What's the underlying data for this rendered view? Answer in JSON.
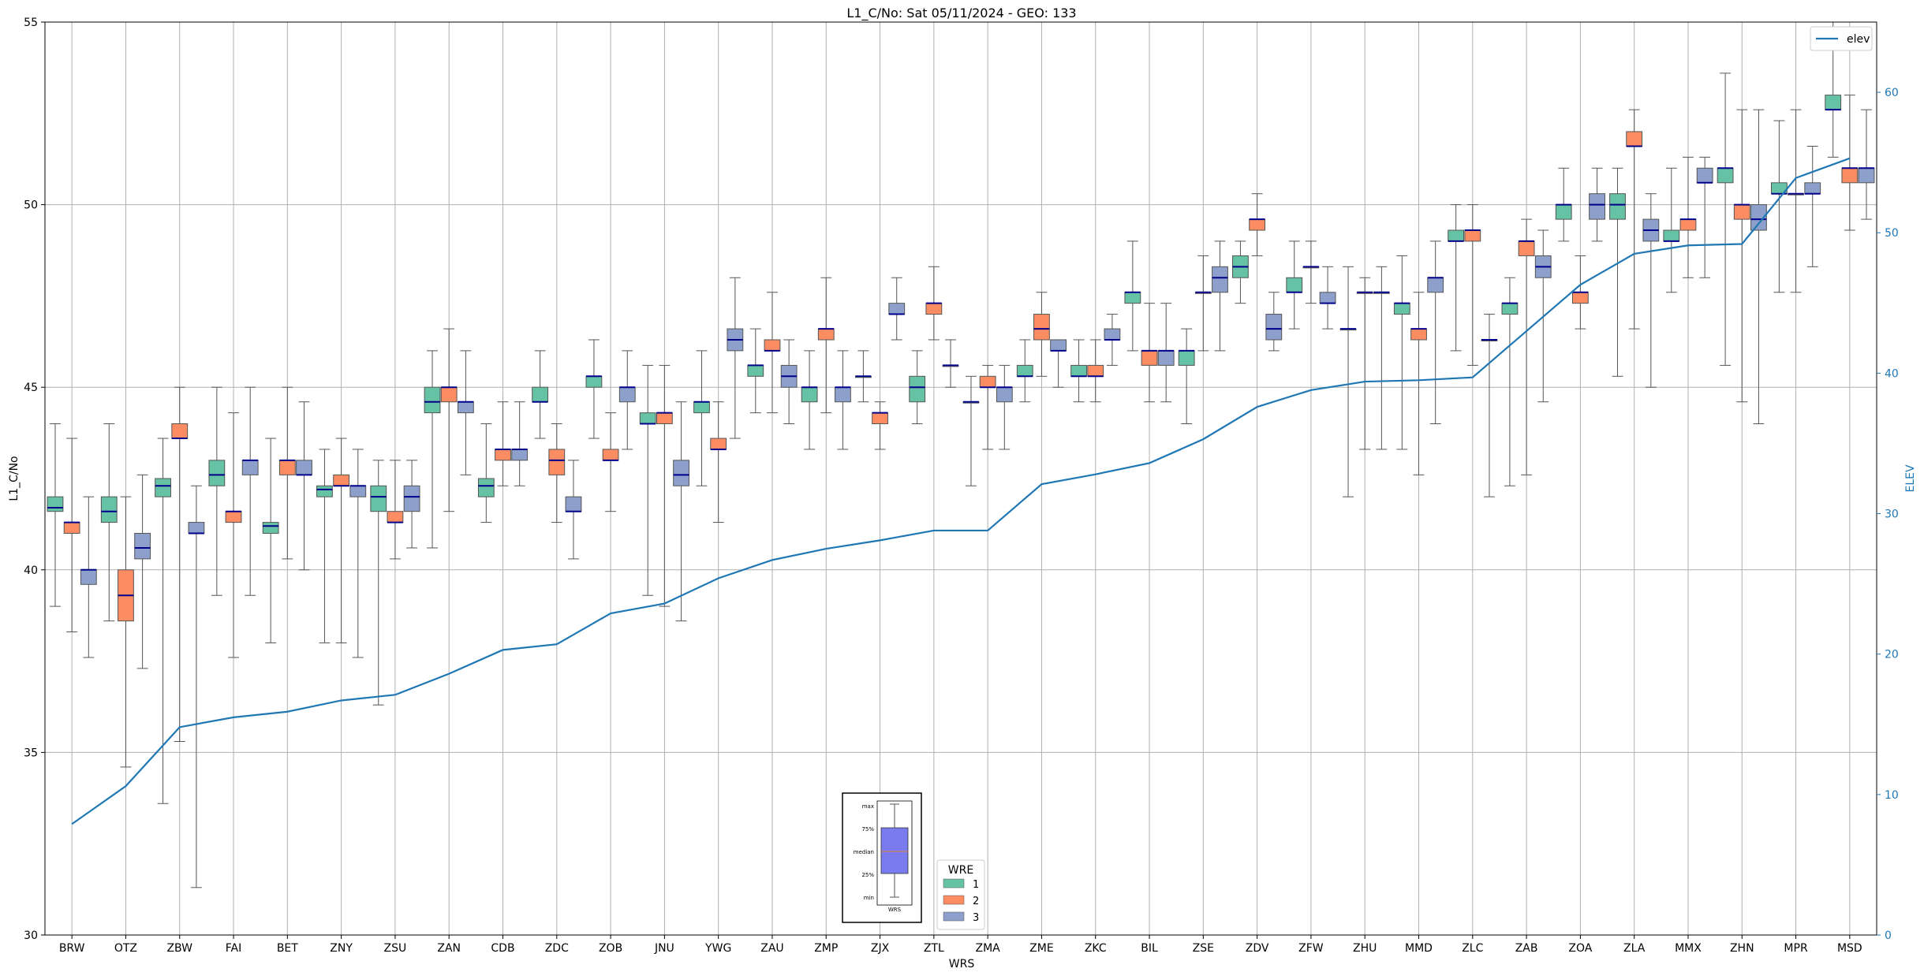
{
  "chart_data": {
    "type": "box",
    "title": "L1_C/No: Sat 05/11/2024 - GEO: 133",
    "xlabel": "WRS",
    "ylabel": "L1_C/No",
    "ylabel_right": "ELEV",
    "ylim": [
      30,
      55
    ],
    "ylim_right": [
      0,
      65
    ],
    "yticks": [
      30,
      35,
      40,
      45,
      50,
      55
    ],
    "yticks_right": [
      0,
      10,
      20,
      30,
      40,
      50,
      60
    ],
    "grid": true,
    "colors": {
      "wre1": "#66c2a5",
      "wre2": "#fc8d62",
      "wre3": "#8da0cb",
      "elev": "#1f77b4",
      "median": "#00008b",
      "whisker": "#555555"
    },
    "legend_elev": {
      "placement": "upper right",
      "label": "elev"
    },
    "legend_wre": {
      "title": "WRE",
      "placement": "lower center",
      "entries": [
        "1",
        "2",
        "3"
      ]
    },
    "key_box": {
      "labels": [
        "max",
        "75%",
        "median",
        "25%",
        "min"
      ],
      "xlabel": "WRS",
      "fill": "#7b7bf0",
      "median_color": "#e07b39"
    },
    "categories": [
      "BRW",
      "OTZ",
      "ZBW",
      "FAI",
      "BET",
      "ZNY",
      "ZSU",
      "ZAN",
      "CDB",
      "ZDC",
      "ZOB",
      "JNU",
      "YWG",
      "ZAU",
      "ZMP",
      "ZJX",
      "ZTL",
      "ZMA",
      "ZME",
      "ZKC",
      "BIL",
      "ZSE",
      "ZDV",
      "ZFW",
      "ZHU",
      "MMD",
      "ZLC",
      "ZAB",
      "ZOA",
      "ZLA",
      "MMX",
      "ZHN",
      "MPR",
      "MSD"
    ],
    "series": [
      {
        "name": "1",
        "boxes": [
          [
            39.0,
            41.6,
            41.7,
            42.0,
            44.0
          ],
          [
            38.6,
            41.3,
            41.6,
            42.0,
            44.0
          ],
          [
            33.6,
            42.0,
            42.3,
            42.5,
            43.6
          ],
          [
            39.3,
            42.3,
            42.6,
            43.0,
            45.0
          ],
          [
            38.0,
            41.0,
            41.2,
            41.3,
            43.6
          ],
          [
            38.0,
            42.0,
            42.2,
            42.3,
            43.3
          ],
          [
            36.3,
            41.6,
            42.0,
            42.3,
            43.0
          ],
          [
            40.6,
            44.3,
            44.6,
            45.0,
            46.0
          ],
          [
            41.3,
            42.0,
            42.3,
            42.5,
            44.0
          ],
          [
            43.6,
            44.6,
            44.6,
            45.0,
            46.0
          ],
          [
            43.6,
            45.0,
            45.3,
            45.3,
            46.3
          ],
          [
            39.3,
            44.0,
            44.0,
            44.3,
            45.6
          ],
          [
            42.3,
            44.3,
            44.6,
            44.6,
            46.0
          ],
          [
            44.3,
            45.3,
            45.6,
            45.6,
            46.6
          ],
          [
            43.3,
            44.6,
            45.0,
            45.0,
            46.0
          ],
          [
            44.6,
            45.3,
            45.3,
            45.3,
            46.0
          ],
          [
            44.0,
            44.6,
            45.0,
            45.3,
            46.0
          ],
          [
            42.3,
            44.6,
            44.6,
            44.6,
            45.3
          ],
          [
            44.6,
            45.3,
            45.3,
            45.6,
            46.3
          ],
          [
            44.6,
            45.3,
            45.3,
            45.6,
            46.3
          ],
          [
            46.0,
            47.3,
            47.6,
            47.6,
            49.0
          ],
          [
            44.0,
            45.6,
            46.0,
            46.0,
            46.6
          ],
          [
            47.3,
            48.0,
            48.3,
            48.6,
            49.0
          ],
          [
            46.6,
            47.6,
            47.6,
            48.0,
            49.0
          ],
          [
            42.0,
            46.6,
            46.6,
            46.6,
            48.3
          ],
          [
            43.3,
            47.0,
            47.3,
            47.3,
            48.6
          ],
          [
            46.0,
            49.0,
            49.0,
            49.3,
            50.0
          ],
          [
            42.3,
            47.0,
            47.3,
            47.3,
            48.0
          ],
          [
            49.0,
            49.6,
            50.0,
            50.0,
            51.0
          ],
          [
            45.3,
            49.6,
            50.0,
            50.3,
            51.0
          ],
          [
            47.6,
            49.0,
            49.0,
            49.3,
            51.0
          ],
          [
            45.6,
            50.6,
            51.0,
            51.0,
            53.6
          ],
          [
            47.6,
            50.3,
            50.3,
            50.6,
            52.3
          ],
          [
            51.3,
            52.6,
            52.6,
            53.0,
            55.0
          ]
        ]
      },
      {
        "name": "2",
        "boxes": [
          [
            38.3,
            41.0,
            41.3,
            41.3,
            43.6
          ],
          [
            34.6,
            38.6,
            39.3,
            40.0,
            42.0
          ],
          [
            35.3,
            43.6,
            43.6,
            44.0,
            45.0
          ],
          [
            37.6,
            41.3,
            41.6,
            41.6,
            44.3
          ],
          [
            40.3,
            42.6,
            43.0,
            43.0,
            45.0
          ],
          [
            38.0,
            42.3,
            42.3,
            42.6,
            43.6
          ],
          [
            40.3,
            41.3,
            41.3,
            41.6,
            43.0
          ],
          [
            41.6,
            44.6,
            45.0,
            45.0,
            46.6
          ],
          [
            42.3,
            43.0,
            43.3,
            43.3,
            44.6
          ],
          [
            41.3,
            42.6,
            43.0,
            43.3,
            44.0
          ],
          [
            41.6,
            43.0,
            43.0,
            43.3,
            44.3
          ],
          [
            39.0,
            44.0,
            44.3,
            44.3,
            45.6
          ],
          [
            41.3,
            43.3,
            43.3,
            43.6,
            44.6
          ],
          [
            44.3,
            46.0,
            46.0,
            46.3,
            47.6
          ],
          [
            44.3,
            46.3,
            46.6,
            46.6,
            48.0
          ],
          [
            43.3,
            44.0,
            44.3,
            44.3,
            44.6
          ],
          [
            46.3,
            47.0,
            47.3,
            47.3,
            48.3
          ],
          [
            43.3,
            45.0,
            45.0,
            45.3,
            45.6
          ],
          [
            45.3,
            46.3,
            46.6,
            47.0,
            47.6
          ],
          [
            44.6,
            45.3,
            45.3,
            45.6,
            46.3
          ],
          [
            44.6,
            45.6,
            46.0,
            46.0,
            47.3
          ],
          [
            46.0,
            47.6,
            47.6,
            47.6,
            48.6
          ],
          [
            48.6,
            49.3,
            49.6,
            49.6,
            50.3
          ],
          [
            47.3,
            48.3,
            48.3,
            48.3,
            49.0
          ],
          [
            43.3,
            47.6,
            47.6,
            47.6,
            48.0
          ],
          [
            42.6,
            46.3,
            46.6,
            46.6,
            47.6
          ],
          [
            45.6,
            49.0,
            49.3,
            49.3,
            50.0
          ],
          [
            42.6,
            48.6,
            49.0,
            49.0,
            49.6
          ],
          [
            46.6,
            47.3,
            47.6,
            47.6,
            48.6
          ],
          [
            46.6,
            51.6,
            51.6,
            52.0,
            52.6
          ],
          [
            48.0,
            49.3,
            49.6,
            49.6,
            51.3
          ],
          [
            44.6,
            49.6,
            50.0,
            50.0,
            52.6
          ],
          [
            47.6,
            50.3,
            50.3,
            50.3,
            52.6
          ],
          [
            49.3,
            50.6,
            51.0,
            51.0,
            53.0
          ]
        ]
      },
      {
        "name": "3",
        "boxes": [
          [
            37.6,
            39.6,
            40.0,
            40.0,
            42.0
          ],
          [
            37.3,
            40.3,
            40.6,
            41.0,
            42.6
          ],
          [
            31.3,
            41.0,
            41.0,
            41.3,
            42.3
          ],
          [
            39.3,
            42.6,
            43.0,
            43.0,
            45.0
          ],
          [
            40.0,
            42.6,
            42.6,
            43.0,
            44.6
          ],
          [
            37.6,
            42.0,
            42.3,
            42.3,
            43.3
          ],
          [
            40.6,
            41.6,
            42.0,
            42.3,
            43.0
          ],
          [
            42.6,
            44.3,
            44.6,
            44.6,
            46.0
          ],
          [
            42.3,
            43.0,
            43.3,
            43.3,
            44.6
          ],
          [
            40.3,
            41.6,
            41.6,
            42.0,
            43.0
          ],
          [
            43.3,
            44.6,
            45.0,
            45.0,
            46.0
          ],
          [
            38.6,
            42.3,
            42.6,
            43.0,
            44.6
          ],
          [
            43.6,
            46.0,
            46.3,
            46.6,
            48.0
          ],
          [
            44.0,
            45.0,
            45.3,
            45.6,
            46.3
          ],
          [
            43.3,
            44.6,
            45.0,
            45.0,
            46.0
          ],
          [
            46.3,
            47.0,
            47.0,
            47.3,
            48.0
          ],
          [
            45.0,
            45.6,
            45.6,
            45.6,
            46.3
          ],
          [
            43.3,
            44.6,
            45.0,
            45.0,
            45.6
          ],
          [
            45.0,
            46.0,
            46.0,
            46.3,
            46.3
          ],
          [
            45.6,
            46.3,
            46.3,
            46.6,
            47.0
          ],
          [
            44.6,
            45.6,
            46.0,
            46.0,
            47.3
          ],
          [
            46.0,
            47.6,
            48.0,
            48.3,
            49.0
          ],
          [
            46.0,
            46.3,
            46.6,
            47.0,
            47.6
          ],
          [
            46.6,
            47.3,
            47.3,
            47.6,
            48.3
          ],
          [
            43.3,
            47.6,
            47.6,
            47.6,
            48.3
          ],
          [
            44.0,
            47.6,
            48.0,
            48.0,
            49.0
          ],
          [
            42.0,
            46.3,
            46.3,
            46.3,
            47.0
          ],
          [
            44.6,
            48.0,
            48.3,
            48.6,
            49.3
          ],
          [
            49.0,
            49.6,
            50.0,
            50.3,
            51.0
          ],
          [
            45.0,
            49.0,
            49.3,
            49.6,
            50.3
          ],
          [
            48.0,
            50.6,
            50.6,
            51.0,
            51.3
          ],
          [
            44.0,
            49.3,
            49.6,
            50.0,
            52.6
          ],
          [
            48.3,
            50.3,
            50.3,
            50.6,
            51.6
          ],
          [
            49.6,
            50.6,
            51.0,
            51.0,
            52.6
          ]
        ]
      }
    ],
    "elev": {
      "name": "elev",
      "values": [
        7.9,
        10.6,
        14.8,
        15.5,
        15.9,
        16.7,
        17.1,
        18.6,
        20.3,
        20.7,
        22.9,
        23.6,
        25.4,
        26.7,
        27.5,
        28.1,
        28.8,
        28.8,
        32.1,
        32.8,
        33.6,
        35.3,
        37.6,
        38.8,
        39.4,
        39.5,
        39.7,
        43.0,
        46.3,
        48.5,
        49.1,
        49.2,
        53.9,
        55.3
      ]
    }
  }
}
